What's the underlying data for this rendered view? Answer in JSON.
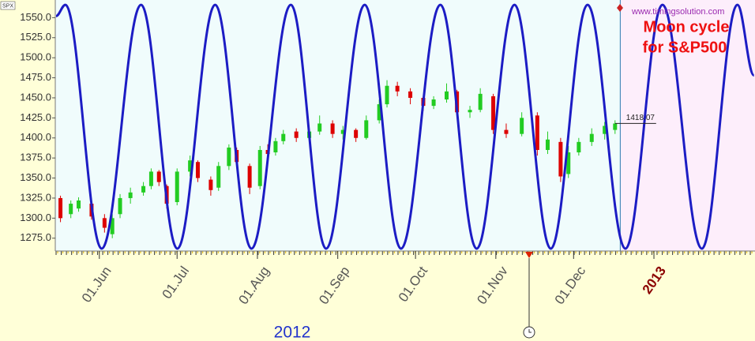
{
  "chart_data": {
    "type": "candlestick",
    "symbol": "SPX",
    "watermark": "www.timingsolution.com",
    "title_lines": [
      "Moon cycle",
      "for S&P500"
    ],
    "year_label": "2012",
    "xlim": [
      136,
      406
    ],
    "ylim": [
      1259,
      1572
    ],
    "yticks": [
      {
        "value": 1275,
        "label": "1275.0"
      },
      {
        "value": 1300,
        "label": "1300.0"
      },
      {
        "value": 1325,
        "label": "1325.0"
      },
      {
        "value": 1350,
        "label": "1350.0"
      },
      {
        "value": 1375,
        "label": "1375.0"
      },
      {
        "value": 1400,
        "label": "1400.0"
      },
      {
        "value": 1425,
        "label": "1425.0"
      },
      {
        "value": 1450,
        "label": "1450.0"
      },
      {
        "value": 1475,
        "label": "1475.0"
      },
      {
        "value": 1500,
        "label": "1500.0"
      },
      {
        "value": 1525,
        "label": "1525.0"
      },
      {
        "value": 1550,
        "label": "1550.0"
      }
    ],
    "xticks": [
      {
        "value": 153,
        "label": "01.Jun"
      },
      {
        "value": 183,
        "label": "01.Jul"
      },
      {
        "value": 214,
        "label": "01.Aug"
      },
      {
        "value": 245,
        "label": "01.Sep"
      },
      {
        "value": 275,
        "label": "01.Oct"
      },
      {
        "value": 306,
        "label": "01.Nov"
      },
      {
        "value": 336,
        "label": "01.Dec"
      },
      {
        "value": 367,
        "label": "2013",
        "color": "#8b0000"
      }
    ],
    "up_color": "#22cc22",
    "down_color": "#dd0000",
    "x": [
      138,
      142,
      145,
      150,
      155,
      158,
      161,
      165,
      170,
      173,
      176,
      179,
      183,
      188,
      191,
      196,
      199,
      203,
      206,
      211,
      215,
      218,
      221,
      224,
      229,
      234,
      238,
      243,
      247,
      252,
      256,
      261,
      264,
      268,
      273,
      278,
      282,
      287,
      291,
      296,
      300,
      305,
      310,
      316,
      322,
      326,
      331,
      334,
      338,
      343,
      348,
      352
    ],
    "open": [
      1325,
      1305,
      1312,
      1318,
      1300,
      1280,
      1305,
      1325,
      1332,
      1340,
      1358,
      1340,
      1320,
      1358,
      1370,
      1348,
      1338,
      1365,
      1385,
      1365,
      1340,
      1385,
      1382,
      1396,
      1408,
      1400,
      1408,
      1418,
      1405,
      1410,
      1400,
      1422,
      1442,
      1465,
      1458,
      1450,
      1440,
      1448,
      1458,
      1432,
      1435,
      1452,
      1410,
      1405,
      1428,
      1385,
      1395,
      1355,
      1382,
      1395,
      1405,
      1410
    ],
    "high": [
      1328,
      1322,
      1326,
      1322,
      1305,
      1305,
      1330,
      1338,
      1345,
      1362,
      1360,
      1342,
      1362,
      1378,
      1372,
      1352,
      1370,
      1392,
      1388,
      1368,
      1390,
      1392,
      1400,
      1410,
      1412,
      1412,
      1428,
      1422,
      1415,
      1412,
      1428,
      1448,
      1472,
      1470,
      1462,
      1452,
      1452,
      1468,
      1460,
      1440,
      1462,
      1455,
      1418,
      1432,
      1432,
      1408,
      1400,
      1390,
      1400,
      1412,
      1420,
      1422
    ],
    "low": [
      1295,
      1300,
      1308,
      1298,
      1282,
      1275,
      1300,
      1318,
      1328,
      1336,
      1340,
      1312,
      1316,
      1352,
      1345,
      1328,
      1334,
      1360,
      1366,
      1330,
      1336,
      1375,
      1378,
      1392,
      1395,
      1398,
      1404,
      1400,
      1398,
      1395,
      1398,
      1418,
      1438,
      1452,
      1442,
      1434,
      1436,
      1444,
      1425,
      1425,
      1432,
      1405,
      1400,
      1402,
      1378,
      1380,
      1345,
      1350,
      1378,
      1390,
      1398,
      1405
    ],
    "close": [
      1300,
      1318,
      1322,
      1302,
      1288,
      1300,
      1325,
      1332,
      1340,
      1358,
      1345,
      1318,
      1358,
      1372,
      1350,
      1335,
      1365,
      1388,
      1370,
      1338,
      1385,
      1380,
      1396,
      1405,
      1400,
      1408,
      1418,
      1405,
      1410,
      1400,
      1422,
      1442,
      1465,
      1458,
      1450,
      1440,
      1448,
      1458,
      1432,
      1435,
      1455,
      1410,
      1405,
      1425,
      1385,
      1398,
      1352,
      1382,
      1395,
      1405,
      1415,
      1418
    ],
    "last_price": 1418.07,
    "forecast_start": 354,
    "overlay": {
      "type": "line",
      "color": "#1c1cc4",
      "x": [
        136.3,
        139.9,
        153.9,
        169.1,
        183.1,
        197.7,
        211.7,
        226.9,
        240.5,
        255.4,
        269.4,
        284.6,
        298.6,
        313.2,
        327.2,
        341.4,
        356.0,
        370.3,
        385.5,
        399.2,
        405.6
      ],
      "values": [
        1552,
        1566,
        1262,
        1566,
        1262,
        1566,
        1262,
        1566,
        1262,
        1566,
        1262,
        1566,
        1262,
        1566,
        1262,
        1566,
        1262,
        1566,
        1262,
        1566,
        1478
      ]
    }
  }
}
